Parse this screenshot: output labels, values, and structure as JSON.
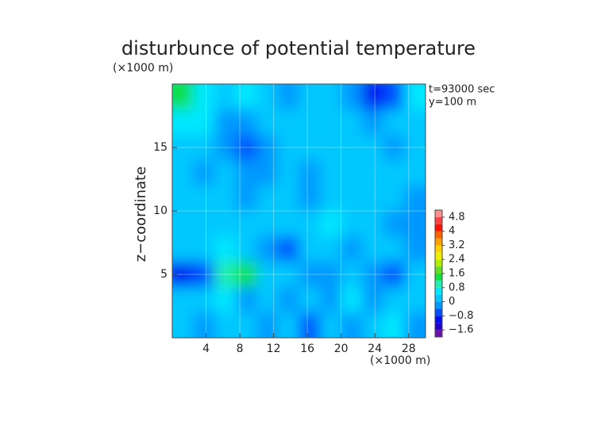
{
  "chart_data": {
    "type": "heatmap",
    "title": "disturbunce of potential temperature",
    "y_unit": "(×1000 m)",
    "x_unit": "(×1000 m)",
    "y_label": "z−coordinate",
    "annotations": [
      "t=93000 sec",
      "y=100 m"
    ],
    "xlim": [
      0,
      30
    ],
    "ylim": [
      0,
      20
    ],
    "xticks": [
      4,
      8,
      12,
      16,
      20,
      24,
      28
    ],
    "yticks": [
      5,
      10,
      15
    ],
    "grid": true,
    "x": [
      1.25,
      3.75,
      6.25,
      8.75,
      11.25,
      13.75,
      16.25,
      18.75,
      21.25,
      23.75,
      26.25,
      28.75
    ],
    "y": [
      19,
      17,
      15,
      13,
      11,
      9,
      7,
      5,
      3,
      1
    ],
    "z": [
      [
        1.2,
        0.6,
        0.2,
        0.4,
        0.2,
        -0.2,
        0.0,
        0.0,
        -0.4,
        -1.2,
        -0.8,
        0.6
      ],
      [
        0.6,
        0.4,
        -0.2,
        -0.4,
        0.0,
        0.0,
        0.2,
        0.2,
        0.0,
        -0.4,
        0.0,
        0.2
      ],
      [
        0.2,
        0.0,
        -0.2,
        -0.6,
        -0.2,
        0.2,
        0.0,
        0.2,
        0.2,
        0.0,
        -0.2,
        0.2
      ],
      [
        0.2,
        -0.2,
        0.0,
        -0.4,
        -0.4,
        0.2,
        -0.2,
        0.2,
        0.0,
        0.2,
        0.0,
        0.2
      ],
      [
        0.0,
        0.2,
        0.0,
        -0.4,
        0.2,
        0.0,
        -0.2,
        0.2,
        0.0,
        0.2,
        0.0,
        -0.4
      ],
      [
        0.2,
        0.0,
        0.2,
        0.0,
        0.2,
        0.2,
        0.0,
        0.4,
        0.2,
        0.0,
        -0.2,
        -0.4
      ],
      [
        0.0,
        0.2,
        0.4,
        0.2,
        -0.2,
        -0.6,
        0.0,
        0.2,
        -0.2,
        0.2,
        0.0,
        -0.2
      ],
      [
        -1.0,
        -0.6,
        1.0,
        1.2,
        0.2,
        0.2,
        -0.2,
        -0.4,
        0.0,
        -0.4,
        -0.6,
        0.2
      ],
      [
        0.2,
        0.0,
        0.4,
        -0.4,
        0.2,
        -0.2,
        0.0,
        -0.2,
        0.4,
        -0.2,
        0.2,
        0.0
      ],
      [
        0.0,
        -0.2,
        0.2,
        0.0,
        -0.4,
        0.0,
        -0.6,
        0.2,
        -0.2,
        0.0,
        0.4,
        -0.2
      ]
    ],
    "colorbar": {
      "levels": [
        -2.0,
        -1.6,
        -1.2,
        -0.8,
        -0.4,
        0.0,
        0.4,
        0.8,
        1.2,
        1.6,
        2.0,
        2.4,
        2.8,
        3.2,
        3.6,
        4.0,
        4.4,
        4.8,
        5.2
      ],
      "colors": [
        "#6a10b0",
        "#2000d0",
        "#0010f0",
        "#0050ff",
        "#0098ff",
        "#00c8ff",
        "#00e8ff",
        "#20f0b0",
        "#10e040",
        "#60e020",
        "#b0f000",
        "#f0f000",
        "#ffd000",
        "#ffa000",
        "#ff6000",
        "#ff1000",
        "#ff4040",
        "#ff9090"
      ],
      "ticks": [
        {
          "value": -1.6,
          "label": "−1.6"
        },
        {
          "value": -0.8,
          "label": "−0.8"
        },
        0,
        0.8,
        1.6,
        2.4,
        3.2,
        4,
        4.8
      ]
    }
  }
}
